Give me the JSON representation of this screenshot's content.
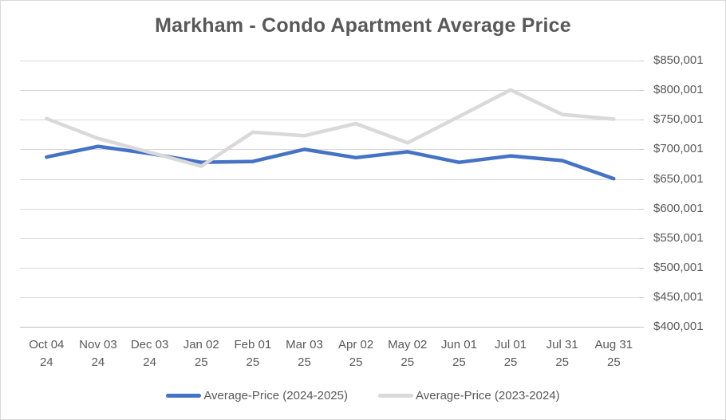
{
  "chart_data": {
    "type": "line",
    "title": "Markham - Condo Apartment Average Price",
    "categories": [
      "Oct 04 24",
      "Nov 03 24",
      "Dec 03 24",
      "Jan 02 25",
      "Feb 01 25",
      "Mar 03 25",
      "Apr 02 25",
      "May 02 25",
      "Jun 01 25",
      "Jul 01 25",
      "Jul 31 25",
      "Aug 31 25"
    ],
    "category_labels": [
      {
        "top": "Oct 04",
        "bottom": "24"
      },
      {
        "top": "Nov 03",
        "bottom": "24"
      },
      {
        "top": "Dec 03",
        "bottom": "24"
      },
      {
        "top": "Jan 02",
        "bottom": "25"
      },
      {
        "top": "Feb 01",
        "bottom": "25"
      },
      {
        "top": "Mar 03",
        "bottom": "25"
      },
      {
        "top": "Apr 02",
        "bottom": "25"
      },
      {
        "top": "May 02",
        "bottom": "25"
      },
      {
        "top": "Jun 01",
        "bottom": "25"
      },
      {
        "top": "Jul 01",
        "bottom": "25"
      },
      {
        "top": "Jul 31",
        "bottom": "25"
      },
      {
        "top": "Aug 31",
        "bottom": "25"
      }
    ],
    "series": [
      {
        "name": "Average-Price (2024-2025)",
        "color": "#4472C4",
        "values": [
          687000,
          705000,
          693000,
          678000,
          679500,
          700000,
          686000,
          696000,
          678000,
          689000,
          681000,
          650500
        ]
      },
      {
        "name": "Average-Price (2023-2024)",
        "color": "#D9D9D9",
        "values": [
          752000,
          718500,
          695000,
          671500,
          729000,
          723000,
          743500,
          711000,
          755500,
          800500,
          759000,
          751000
        ]
      }
    ],
    "y_axis": {
      "side": "right",
      "min": 400001,
      "max": 850001,
      "step": 50000,
      "tick_labels": [
        "$850,001",
        "$800,001",
        "$750,001",
        "$700,001",
        "$650,001",
        "$600,001",
        "$550,001",
        "$500,001",
        "$450,001",
        "$400,001"
      ]
    },
    "grid": true,
    "legend_position": "bottom",
    "colors": {
      "gridline": "#D9D9D9",
      "axis_line": "#BFBFBF",
      "tick_mark": "#C9C9C9",
      "text": "#595959",
      "background": "#FFFFFF",
      "border": "#D9D9D9"
    }
  }
}
